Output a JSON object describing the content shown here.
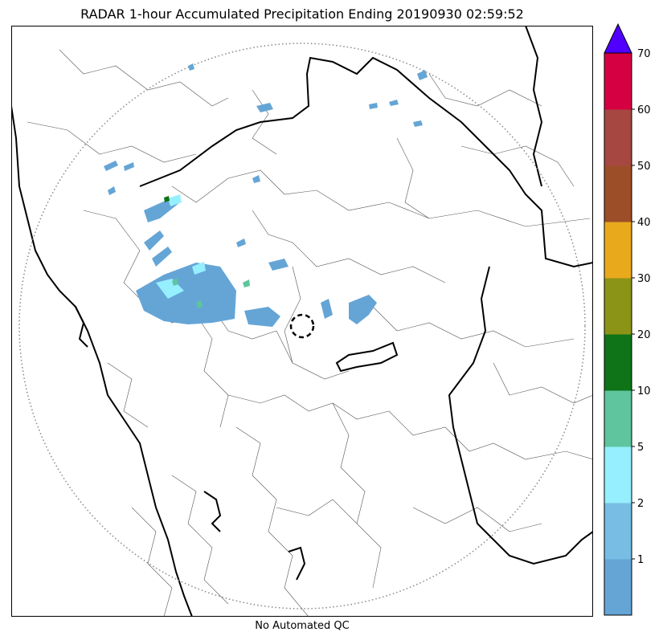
{
  "title": "RADAR 1-hour Accumulated Precipitation Ending 20190930 02:59:52",
  "subtitle": "No Automated QC",
  "legend": {
    "bins": [
      {
        "color": "#65a5d6"
      },
      {
        "label": "1",
        "color": "#78bde3"
      },
      {
        "label": "2",
        "color": "#96efff"
      },
      {
        "label": "5",
        "color": "#5ec59e"
      },
      {
        "label": "10",
        "color": "#0f7418"
      },
      {
        "label": "20",
        "color": "#8b9417"
      },
      {
        "label": "30",
        "color": "#e8a91c"
      },
      {
        "label": "40",
        "color": "#9c4e28"
      },
      {
        "label": "50",
        "color": "#a74742"
      },
      {
        "label": "60",
        "color": "#d50041"
      }
    ],
    "top_label": "70",
    "extend_color": "#5000ff"
  },
  "colors": {
    "coast": "#000000",
    "borders": "#555555",
    "range_ring": "#888888",
    "rain_light": "#65a5d6",
    "rain_mid": "#96efff",
    "rain_heavy": "#5ec59e"
  }
}
